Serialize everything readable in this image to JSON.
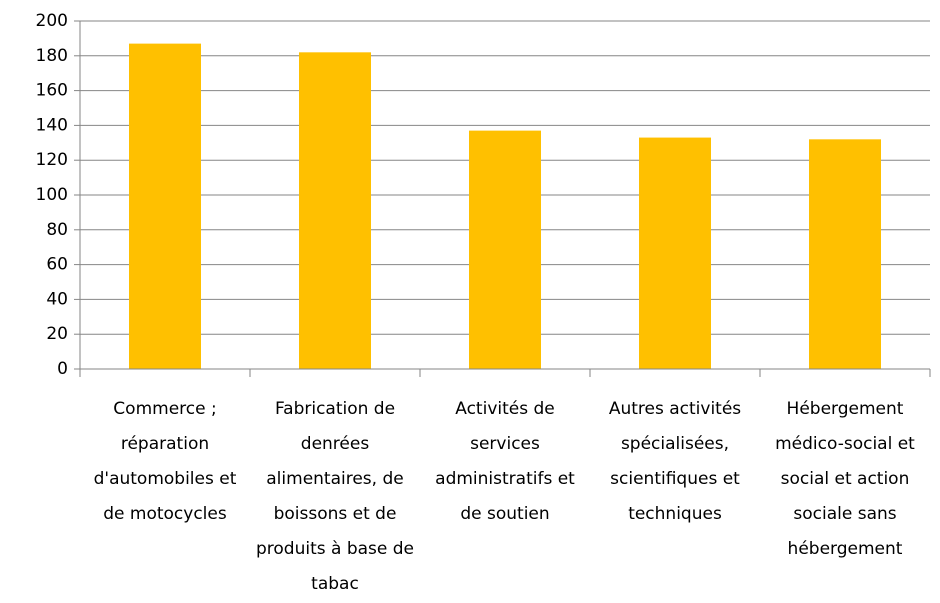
{
  "chart_data": {
    "type": "bar",
    "categories": [
      "Commerce ; réparation d'automobiles et de motocycles",
      "Fabrication de denrées alimentaires, de boissons et de produits à base de tabac",
      "Activités de services administratifs et de soutien",
      "Autres activités spécialisées, scientifiques et techniques",
      "Hébergement médico-social et social et action sociale sans hébergement"
    ],
    "values": [
      187,
      182,
      137,
      133,
      132
    ],
    "color": "#ffc000",
    "ylim": [
      0,
      200
    ],
    "yticks": [
      0,
      20,
      40,
      60,
      80,
      100,
      120,
      140,
      160,
      180,
      200
    ],
    "grid": true
  }
}
